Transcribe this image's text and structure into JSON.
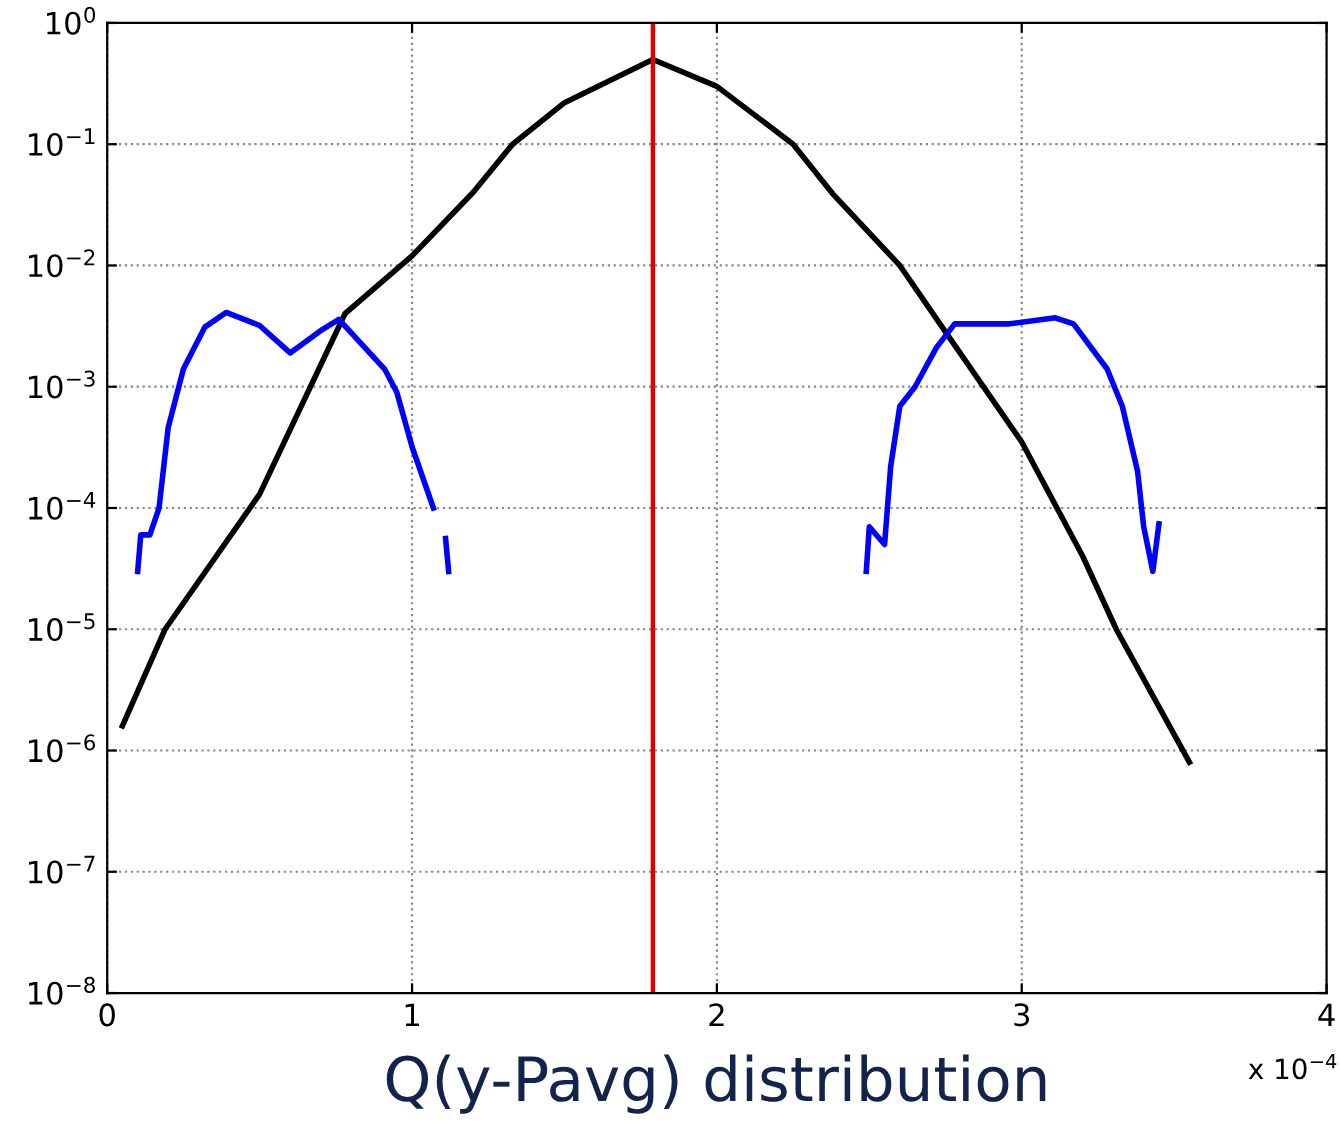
{
  "chart_data": {
    "type": "line",
    "xlabel": "Q(y-Pavg) distribution",
    "log": "y",
    "grid": true,
    "legend": false,
    "marker": "none",
    "line_style": "solid",
    "xlim": [
      0,
      4
    ],
    "xticks": [
      0,
      1,
      2,
      3,
      4
    ],
    "ylim": [
      1e-08,
      1
    ],
    "yticks": [
      {
        "value": 1e-08,
        "label": "10$^{−8}$"
      },
      {
        "value": 1e-07,
        "label": "10$^{−7}$"
      },
      {
        "value": 1e-06,
        "label": "10$^{−6}$"
      },
      {
        "value": 1e-05,
        "label": "10$^{−5}$"
      },
      {
        "value": 0.0001,
        "label": "10$^{−4}$"
      },
      {
        "value": 0.001,
        "label": "10$^{−3}$"
      },
      {
        "value": 0.01,
        "label": "10$^{−2}$"
      },
      {
        "value": 0.1,
        "label": "10$^{−1}$"
      },
      {
        "value": 1,
        "label": "10$^{0}$"
      }
    ],
    "annotations": [
      "x 10$^{−4}$"
    ],
    "ref_lines": [
      {
        "axis": "x",
        "value": 1.79,
        "color": "#e00000",
        "line_style": "solid"
      }
    ],
    "series": [
      {
        "color": "#000000",
        "x": [
          0.05,
          0.19,
          0.5,
          0.78,
          1.0,
          1.2,
          1.33,
          1.5,
          1.79,
          2.0,
          2.25,
          2.38,
          2.6,
          2.76,
          3.0,
          3.2,
          3.31,
          3.55
        ],
        "values": [
          1.6e-06,
          1e-05,
          0.00013,
          0.004,
          0.012,
          0.04,
          0.1,
          0.22,
          0.5,
          0.3,
          0.1,
          0.039,
          0.01,
          0.0026,
          0.00035,
          4e-05,
          1e-05,
          8e-07
        ]
      },
      {
        "color": "#0000ff",
        "x": [
          0.1,
          0.11,
          0.14,
          0.17,
          0.2,
          0.25,
          0.32,
          0.39,
          0.5,
          0.6,
          0.7,
          0.76,
          0.91,
          0.95,
          1.0,
          1.07,
          1.09,
          1.11,
          1.12
        ],
        "values": [
          3e-05,
          6e-05,
          6e-05,
          0.0001,
          0.00046,
          0.0014,
          0.0031,
          0.0041,
          0.0032,
          0.0019,
          0.0029,
          0.0036,
          0.0014,
          0.0009,
          0.00032,
          0.0001,
          null,
          5.6e-05,
          3e-05
        ]
      },
      {
        "color": "#0000ff",
        "x": [
          2.49,
          2.5,
          2.55,
          2.57,
          2.6,
          2.65,
          2.72,
          2.78,
          2.96,
          3.11,
          3.17,
          3.28,
          3.33,
          3.38,
          3.4,
          3.43,
          3.45
        ],
        "values": [
          3e-05,
          7e-05,
          5e-05,
          0.00022,
          0.00069,
          0.001,
          0.0021,
          0.0033,
          0.0033,
          0.0037,
          0.0033,
          0.0014,
          0.00069,
          0.0002,
          7e-05,
          3e-05,
          7.4e-05
        ]
      }
    ]
  }
}
